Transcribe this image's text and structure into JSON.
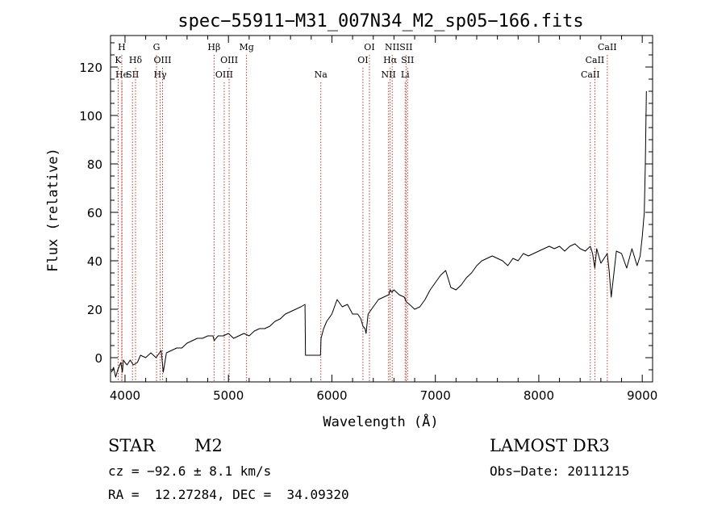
{
  "chart_data": {
    "type": "line",
    "title": "spec−55911−M31_007N34_M2_sp05−166.fits",
    "xlabel": "Wavelength (Å)",
    "ylabel": "Flux (relative)",
    "xlim": [
      3860,
      9100
    ],
    "ylim": [
      -10,
      133
    ],
    "xticks": [
      4000,
      5000,
      6000,
      7000,
      8000,
      9000
    ],
    "yticks": [
      0,
      20,
      40,
      60,
      80,
      100,
      120
    ],
    "series": [
      {
        "name": "flux",
        "x": [
          3870,
          3890,
          3910,
          3930,
          3950,
          3960,
          3975,
          3985,
          4000,
          4020,
          4050,
          4080,
          4120,
          4150,
          4200,
          4250,
          4300,
          4350,
          4370,
          4400,
          4450,
          4500,
          4550,
          4600,
          4650,
          4700,
          4750,
          4800,
          4850,
          4862,
          4880,
          4900,
          4950,
          5000,
          5050,
          5100,
          5150,
          5200,
          5250,
          5300,
          5350,
          5400,
          5450,
          5500,
          5550,
          5600,
          5650,
          5700,
          5740,
          5745,
          5800,
          5850,
          5890,
          5895,
          5920,
          5950,
          6000,
          6050,
          6100,
          6150,
          6200,
          6250,
          6280,
          6300,
          6320,
          6330,
          6350,
          6400,
          6450,
          6500,
          6550,
          6563,
          6580,
          6600,
          6650,
          6700,
          6720,
          6750,
          6800,
          6850,
          6900,
          6950,
          7000,
          7050,
          7100,
          7150,
          7200,
          7250,
          7300,
          7350,
          7400,
          7450,
          7500,
          7550,
          7600,
          7650,
          7700,
          7750,
          7800,
          7850,
          7900,
          7950,
          8000,
          8050,
          8100,
          8150,
          8200,
          8250,
          8300,
          8350,
          8400,
          8450,
          8498,
          8520,
          8542,
          8560,
          8600,
          8662,
          8680,
          8700,
          8750,
          8800,
          8850,
          8900,
          8950,
          8980,
          9000,
          9020,
          9030,
          9040
        ],
        "y": [
          -6,
          -4,
          -8,
          -5,
          -3,
          -2,
          -6,
          -1,
          -2,
          -3,
          -1,
          -3,
          -2,
          1,
          0,
          2,
          0,
          3,
          -6,
          2,
          3,
          4,
          4,
          6,
          7,
          8,
          8,
          9,
          9,
          7,
          8,
          9,
          9,
          10,
          8,
          9,
          10,
          9,
          11,
          12,
          12,
          13,
          15,
          16,
          18,
          19,
          20,
          21,
          22,
          1,
          1,
          1,
          1,
          8,
          12,
          15,
          18,
          24,
          21,
          22,
          18,
          18,
          16,
          13,
          12,
          10,
          18,
          21,
          24,
          25,
          26,
          28,
          27,
          28,
          26,
          25,
          23,
          22,
          20,
          21,
          24,
          28,
          31,
          34,
          36,
          29,
          28,
          30,
          33,
          35,
          38,
          40,
          41,
          42,
          41,
          40,
          38,
          41,
          40,
          43,
          42,
          43,
          44,
          45,
          46,
          45,
          46,
          44,
          46,
          47,
          45,
          44,
          46,
          43,
          37,
          45,
          39,
          43,
          36,
          25,
          44,
          43,
          37,
          45,
          38,
          42,
          50,
          60,
          80,
          110
        ]
      }
    ],
    "lines": [
      {
        "label": "He",
        "x": 3970,
        "row": 3
      },
      {
        "label": "H",
        "x": 3969,
        "row": 1
      },
      {
        "label": "K",
        "x": 3934,
        "row": 2
      },
      {
        "label": "Hδ",
        "x": 4102,
        "row": 2
      },
      {
        "label": "SII",
        "x": 4072,
        "row": 3
      },
      {
        "label": "G",
        "x": 4305,
        "row": 1
      },
      {
        "label": "OIII",
        "x": 4363,
        "row": 2
      },
      {
        "label": "Hγ",
        "x": 4340,
        "row": 3
      },
      {
        "label": "Hβ",
        "x": 4861,
        "row": 1
      },
      {
        "label": "OIII",
        "x": 5007,
        "row": 2
      },
      {
        "label": "OIII",
        "x": 4959,
        "row": 3
      },
      {
        "label": "Mg",
        "x": 5175,
        "row": 1
      },
      {
        "label": "Na",
        "x": 5893,
        "row": 3
      },
      {
        "label": "OI",
        "x": 6363,
        "row": 1
      },
      {
        "label": "OI",
        "x": 6300,
        "row": 2
      },
      {
        "label": "NII",
        "x": 6583,
        "row": 1
      },
      {
        "label": "Hα",
        "x": 6563,
        "row": 2
      },
      {
        "label": "NII",
        "x": 6548,
        "row": 3
      },
      {
        "label": "SII",
        "x": 6717,
        "row": 1
      },
      {
        "label": "SII",
        "x": 6731,
        "row": 2
      },
      {
        "label": "Li",
        "x": 6708,
        "row": 3
      },
      {
        "label": "CaII",
        "x": 8662,
        "row": 1
      },
      {
        "label": "CaII",
        "x": 8542,
        "row": 2
      },
      {
        "label": "CaII",
        "x": 8498,
        "row": 3
      }
    ]
  },
  "info": {
    "class": "STAR",
    "subclass": "M2",
    "survey": "LAMOST DR3",
    "cz": "cz = −92.6 ± 8.1 km/s",
    "obs_date": "Obs−Date: 20111215",
    "coords": "RA =  12.27284, DEC =  34.09320"
  },
  "colors": {
    "line_markers": "#c0392b",
    "spectrum": "#000000"
  }
}
